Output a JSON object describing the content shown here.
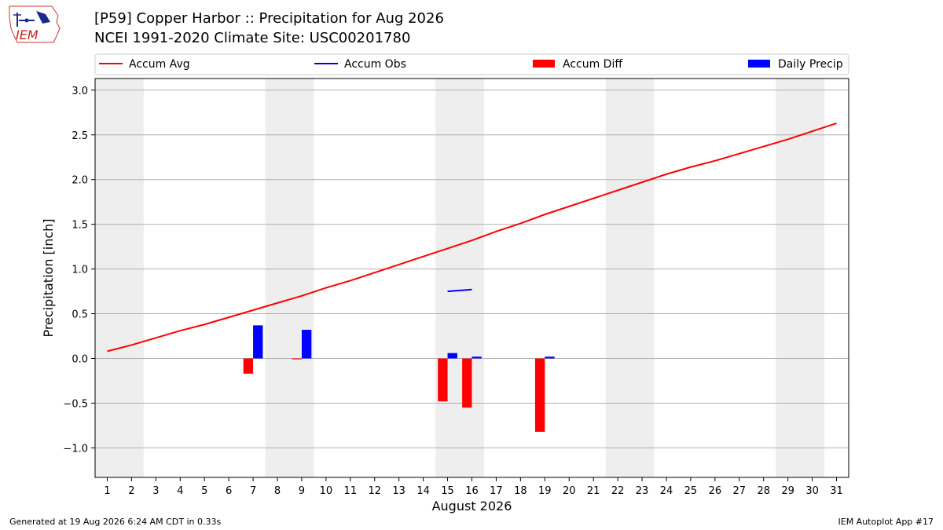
{
  "header": {
    "logo_text": "IEM",
    "title_line1": "[P59] Copper Harbor :: Precipitation for Aug 2026",
    "title_line2": "NCEI 1991-2020 Climate Site: USC00201780"
  },
  "footer": {
    "left": "Generated at 19 Aug 2026 6:24 AM CDT in 0.33s",
    "right": "IEM Autoplot App #17"
  },
  "colors": {
    "accum_avg": "#ff0000",
    "accum_obs": "#0000ff",
    "accum_diff": "#ff0000",
    "daily_precip": "#0000ff",
    "weekend_band": "#eeeeee",
    "grid": "#b0b0b0"
  },
  "chart_data": {
    "type": "bar",
    "xlabel": "August 2026",
    "ylabel": "Precipitation [inch]",
    "xlim": [
      0.5,
      31.5
    ],
    "ylim": [
      -1.33,
      3.13
    ],
    "x_ticks": [
      1,
      2,
      3,
      4,
      5,
      6,
      7,
      8,
      9,
      10,
      11,
      12,
      13,
      14,
      15,
      16,
      17,
      18,
      19,
      20,
      21,
      22,
      23,
      24,
      25,
      26,
      27,
      28,
      29,
      30,
      31
    ],
    "y_ticks": [
      -1.0,
      -0.5,
      0.0,
      0.5,
      1.0,
      1.5,
      2.0,
      2.5,
      3.0
    ],
    "y_tick_labels": [
      "−1.0",
      "−0.5",
      "0.0",
      "0.5",
      "1.0",
      "1.5",
      "2.0",
      "2.5",
      "3.0"
    ],
    "grid": "horizontal",
    "legend_position": "top, above plot",
    "weekend_bands": [
      [
        1,
        2
      ],
      [
        8,
        9
      ],
      [
        15,
        16
      ],
      [
        22,
        23
      ],
      [
        29,
        30
      ]
    ],
    "legend": [
      {
        "label": "Accum Avg",
        "kind": "line",
        "color": "#ff0000"
      },
      {
        "label": "Accum Obs",
        "kind": "line",
        "color": "#0000ff"
      },
      {
        "label": "Accum Diff",
        "kind": "bar",
        "color": "#ff0000"
      },
      {
        "label": "Daily Precip",
        "kind": "bar",
        "color": "#0000ff"
      }
    ],
    "accum_avg": {
      "x": [
        1,
        2,
        3,
        4,
        5,
        6,
        7,
        8,
        9,
        10,
        11,
        12,
        13,
        14,
        15,
        16,
        17,
        18,
        19,
        20,
        21,
        22,
        23,
        24,
        25,
        26,
        27,
        28,
        29,
        30,
        31
      ],
      "y": [
        0.08,
        0.15,
        0.23,
        0.31,
        0.38,
        0.46,
        0.54,
        0.62,
        0.7,
        0.79,
        0.87,
        0.96,
        1.05,
        1.14,
        1.23,
        1.32,
        1.42,
        1.51,
        1.61,
        1.7,
        1.79,
        1.88,
        1.97,
        2.06,
        2.14,
        2.21,
        2.29,
        2.37,
        2.45,
        2.54,
        2.63
      ]
    },
    "accum_obs": {
      "x": [
        15,
        16
      ],
      "y": [
        0.75,
        0.77
      ]
    },
    "accum_diff": {
      "x": [
        7,
        9,
        15,
        16,
        19
      ],
      "y": [
        -0.17,
        -0.01,
        -0.48,
        -0.55,
        -0.82
      ]
    },
    "daily_precip": {
      "x": [
        7,
        9,
        15,
        16,
        19
      ],
      "y": [
        0.37,
        0.32,
        0.06,
        0.02,
        0.02
      ]
    }
  }
}
